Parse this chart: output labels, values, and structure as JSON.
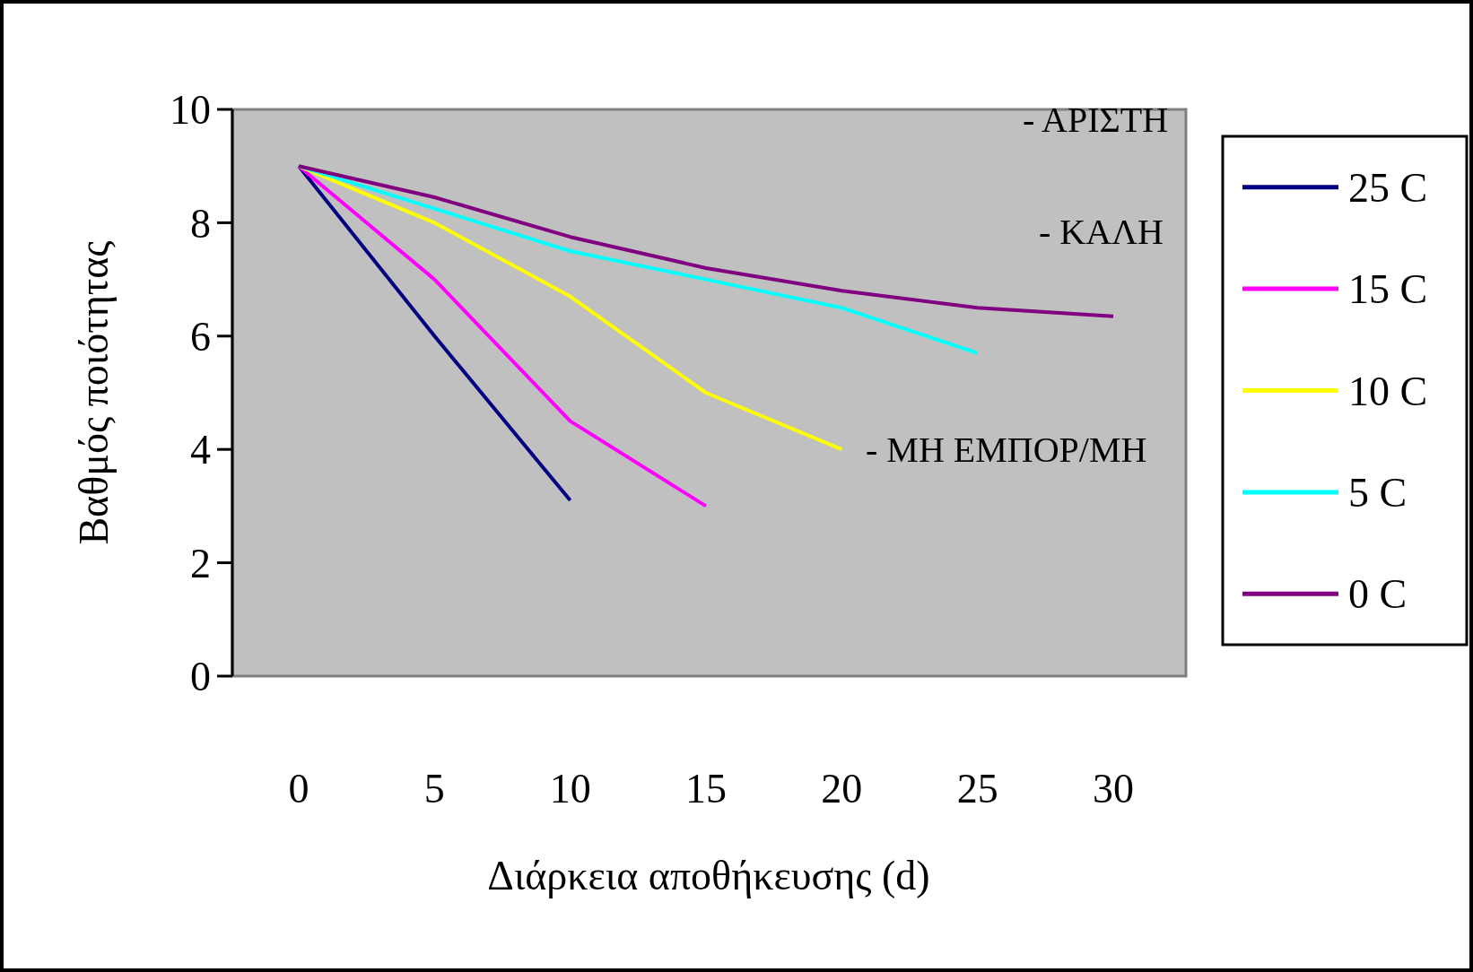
{
  "chart_data": {
    "type": "line",
    "xlabel": "Διάρκεια αποθήκευσης (d)",
    "ylabel": "Βαθμός ποιότητας",
    "categories": [
      "0",
      "5",
      "10",
      "15",
      "20",
      "25",
      "30"
    ],
    "series": [
      {
        "name": "25 C",
        "color": "#000080",
        "values": [
          9,
          6,
          3.1,
          null,
          null,
          null,
          null
        ]
      },
      {
        "name": "15 C",
        "color": "#ff00ff",
        "values": [
          9,
          7,
          4.5,
          3.0,
          null,
          null,
          null
        ]
      },
      {
        "name": "10 C",
        "color": "#ffff00",
        "values": [
          9,
          8,
          6.7,
          5.0,
          4.0,
          null,
          null
        ]
      },
      {
        "name": "5 C",
        "color": "#00ffff",
        "values": [
          9,
          8.25,
          7.5,
          7.0,
          6.5,
          5.7,
          null
        ]
      },
      {
        "name": "0 C",
        "color": "#800080",
        "values": [
          9,
          8.45,
          7.75,
          7.2,
          6.8,
          6.5,
          6.35
        ]
      }
    ],
    "ylim": [
      0,
      10
    ],
    "yticks": [
      0,
      2,
      4,
      6,
      8,
      10
    ],
    "grid": false,
    "legend": "right",
    "marker": "none",
    "line_style": "solid",
    "annotations": [
      "- ΑΡΙΣΤΗ",
      "- ΚΑΛΗ",
      "- ΜΗ ΕΜΠΟΡ/ΜΗ"
    ]
  }
}
